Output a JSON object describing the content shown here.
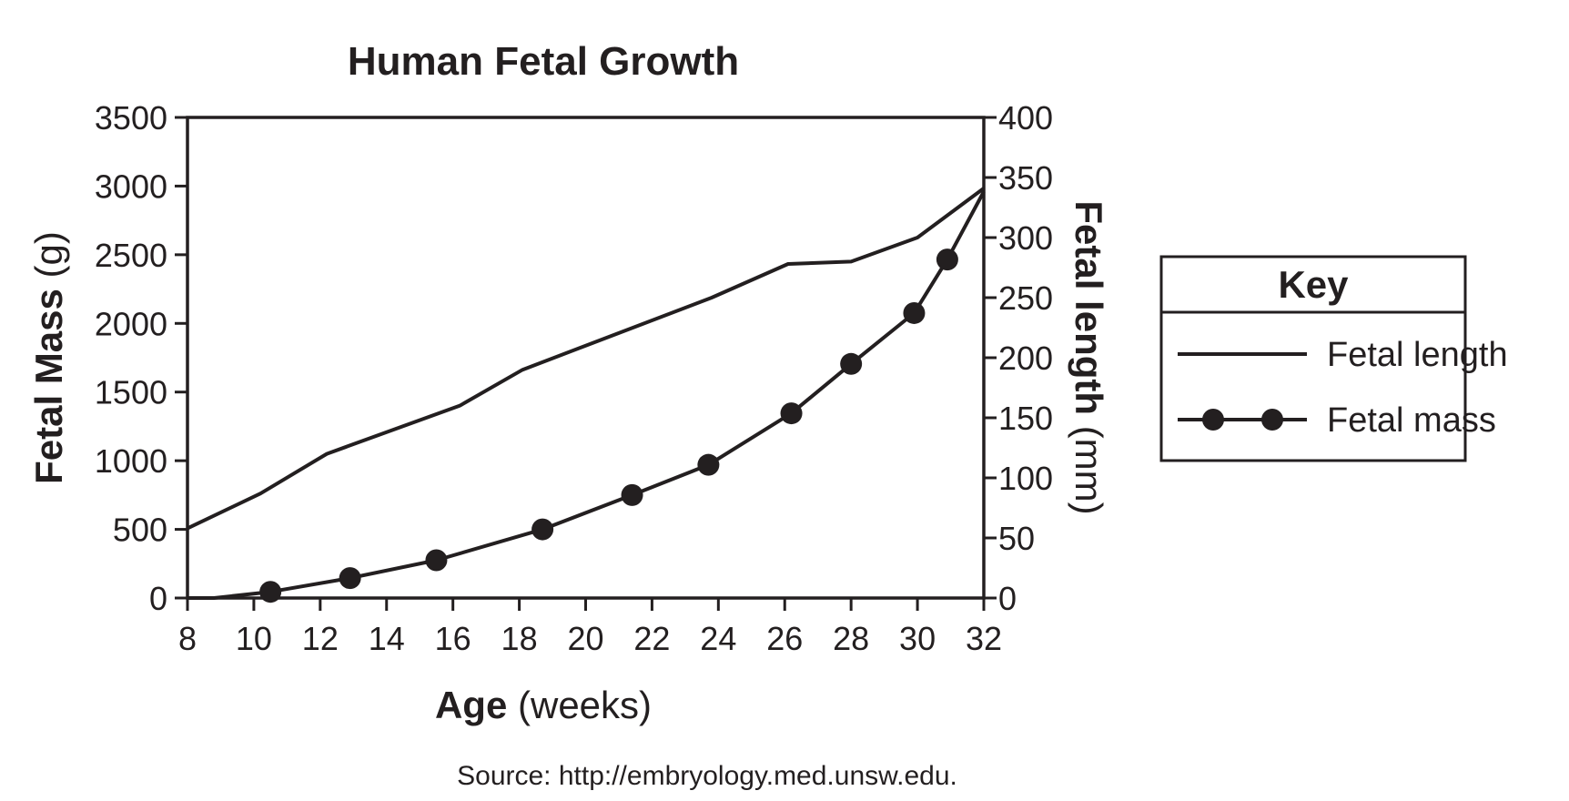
{
  "chart_data": {
    "type": "line",
    "title": "Human Fetal Growth",
    "xlabel": {
      "bold": "Age",
      "rest": " (weeks)"
    },
    "ylabel_left": {
      "bold": "Fetal Mass",
      "rest": " (g)"
    },
    "ylabel_right": {
      "bold": "Fetal length",
      "rest": " (mm)"
    },
    "xlim": [
      8,
      32
    ],
    "ylim_left": [
      0,
      3500
    ],
    "ylim_right": [
      0,
      400
    ],
    "x_ticks": [
      8,
      10,
      12,
      14,
      16,
      18,
      20,
      22,
      24,
      26,
      28,
      30,
      32
    ],
    "y_ticks_left": [
      0,
      500,
      1000,
      1500,
      2000,
      2500,
      3000,
      3500
    ],
    "y_ticks_right": [
      0,
      50,
      100,
      150,
      200,
      250,
      300,
      350,
      400
    ],
    "grid": false,
    "series": [
      {
        "name": "Fetal length",
        "axis": "right",
        "marker": "none",
        "x": [
          8,
          10.2,
          12.2,
          16.2,
          18.1,
          23.8,
          26.1,
          28.0,
          30.0,
          32.0
        ],
        "y": [
          58,
          87,
          120,
          160,
          190,
          250,
          278,
          280,
          300,
          341
        ]
      },
      {
        "name": "Fetal mass",
        "axis": "left",
        "marker": "circle",
        "x": [
          8,
          8.8,
          10.5,
          12.9,
          15.5,
          18.7,
          21.4,
          23.7,
          26.2,
          28.0,
          29.9,
          30.9,
          32.0
        ],
        "y": [
          0,
          0,
          45,
          145,
          275,
          500,
          750,
          970,
          1345,
          1705,
          2075,
          2465,
          2960
        ],
        "marker_x": [
          10.5,
          12.9,
          15.5,
          18.7,
          21.4,
          23.7,
          26.2,
          28.0,
          29.9,
          30.9
        ],
        "marker_y": [
          45,
          145,
          275,
          500,
          750,
          970,
          1345,
          1705,
          2075,
          2465
        ]
      }
    ],
    "legend": {
      "title": "Key",
      "placement": "right",
      "entries": [
        "Fetal length",
        "Fetal mass"
      ]
    },
    "source": "Source: http://embryology.med.unsw.edu."
  }
}
